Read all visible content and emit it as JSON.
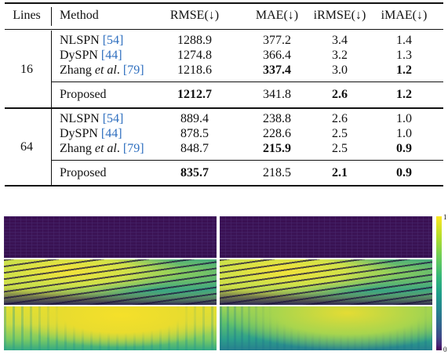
{
  "table": {
    "headers": {
      "lines": "Lines",
      "method": "Method",
      "rmse": "RMSE(↓)",
      "mae": "MAE(↓)",
      "irmse": "iRMSE(↓)",
      "imae": "iMAE(↓)"
    },
    "groups": [
      {
        "lines": "16",
        "rows": [
          {
            "method": "NLSPN",
            "cite": "[54]",
            "rmse": "1288.9",
            "mae": "377.2",
            "irmse": "3.4",
            "imae": "1.4"
          },
          {
            "method": "DySPN",
            "cite": "[44]",
            "rmse": "1274.8",
            "mae": "366.4",
            "irmse": "3.2",
            "imae": "1.3"
          },
          {
            "method": "Zhang",
            "method_em": "et al",
            "method_suffix": ".",
            "cite": "[79]",
            "rmse": "1218.6",
            "mae": "337.4",
            "irmse": "3.0",
            "imae": "1.2"
          }
        ],
        "proposed": {
          "method": "Proposed",
          "rmse": "1212.7",
          "mae": "341.8",
          "irmse": "2.6",
          "imae": "1.2"
        }
      },
      {
        "lines": "64",
        "rows": [
          {
            "method": "NLSPN",
            "cite": "[54]",
            "rmse": "889.4",
            "mae": "238.8",
            "irmse": "2.6",
            "imae": "1.0"
          },
          {
            "method": "DySPN",
            "cite": "[44]",
            "rmse": "878.5",
            "mae": "228.6",
            "irmse": "2.5",
            "imae": "1.0"
          },
          {
            "method": "Zhang",
            "method_em": "et al",
            "method_suffix": ".",
            "cite": "[79]",
            "rmse": "848.7",
            "mae": "215.9",
            "irmse": "2.5",
            "imae": "0.9"
          }
        ],
        "proposed": {
          "method": "Proposed",
          "rmse": "835.7",
          "mae": "218.5",
          "irmse": "2.1",
          "imae": "0.9"
        }
      }
    ],
    "bold_cells": [
      "g0.r2.mae",
      "g0.r2.imae",
      "g0.p.rmse",
      "g0.p.irmse",
      "g0.p.imae",
      "g1.r2.mae",
      "g1.r2.imae",
      "g1.p.rmse",
      "g1.p.irmse",
      "g1.p.imae"
    ]
  },
  "figure": {
    "colorbar": {
      "max_label": "1",
      "min_label": "0",
      "colormap": "viridis"
    },
    "panels": [
      "sparse-input-left",
      "sparse-input-right",
      "dense-depth-left",
      "dense-depth-right",
      "error-map-left",
      "error-map-right"
    ]
  },
  "colors": {
    "citation": "#2f6fbf",
    "rule": "#111111"
  }
}
